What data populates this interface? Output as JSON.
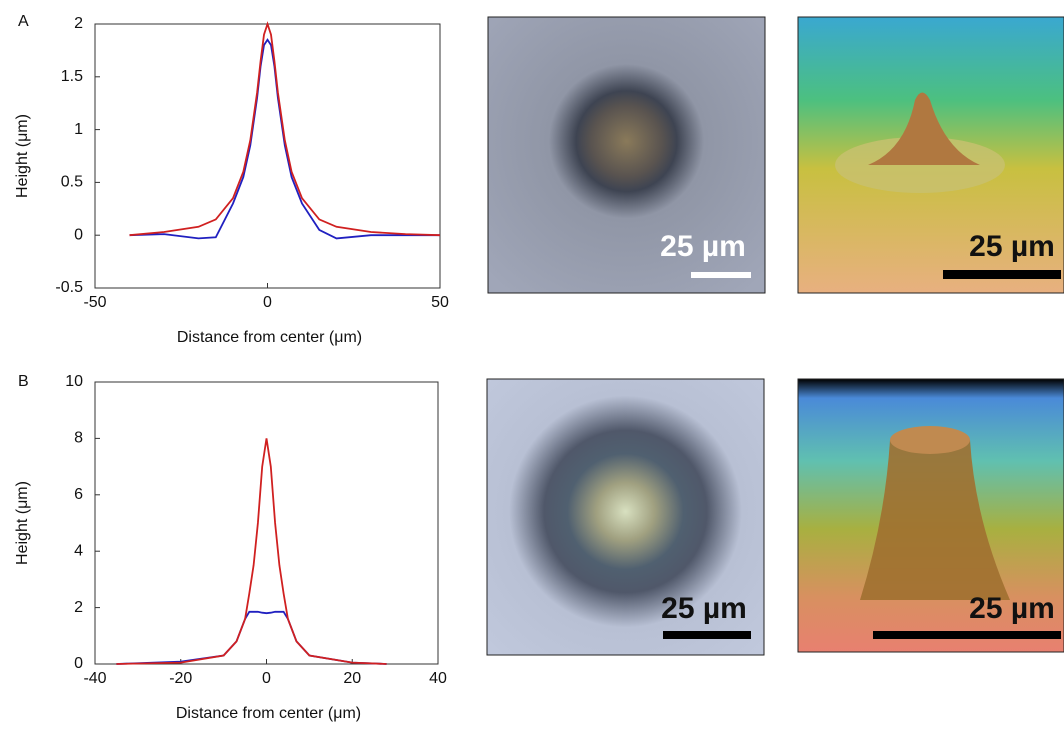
{
  "chart_data": [
    {
      "type": "line",
      "xlabel": "Distance from center (μm)",
      "ylabel": "Height (μm)",
      "x": [
        -40,
        -30,
        -20,
        -15,
        -10,
        -7,
        -5,
        -3,
        -2,
        -1,
        0,
        1,
        2,
        3,
        5,
        7,
        10,
        15,
        20,
        30,
        40,
        50
      ],
      "series": [
        {
          "color": "#2020c0",
          "values": [
            0,
            0.01,
            -0.03,
            -0.02,
            0.3,
            0.55,
            0.85,
            1.3,
            1.6,
            1.8,
            1.85,
            1.8,
            1.6,
            1.3,
            0.85,
            0.55,
            0.3,
            0.05,
            -0.03,
            0,
            0,
            0
          ]
        },
        {
          "color": "#d02020",
          "values": [
            0,
            0.03,
            0.08,
            0.15,
            0.35,
            0.6,
            0.9,
            1.35,
            1.65,
            1.9,
            2,
            1.9,
            1.65,
            1.35,
            0.9,
            0.6,
            0.35,
            0.15,
            0.08,
            0.03,
            0.01,
            0
          ]
        }
      ],
      "xlim": [
        -50,
        50
      ],
      "xticks": [
        -50,
        0,
        50
      ],
      "ylim": [
        -0.5,
        2
      ],
      "yticks": [
        -0.5,
        0,
        0.5,
        1,
        1.5,
        2
      ]
    },
    {
      "type": "line",
      "xlabel": "Distance from center (μm)",
      "ylabel": "Height (μm)",
      "x": [
        -35,
        -20,
        -10,
        -7,
        -5,
        -4,
        -3,
        -2,
        -1,
        0,
        1,
        2,
        3,
        4,
        5,
        7,
        10,
        20,
        28
      ],
      "series": [
        {
          "color": "#2020c0",
          "values": [
            0,
            0.08,
            0.3,
            0.8,
            1.6,
            1.85,
            1.85,
            1.85,
            1.82,
            1.8,
            1.82,
            1.85,
            1.85,
            1.85,
            1.6,
            0.8,
            0.3,
            0.05,
            0
          ]
        },
        {
          "color": "#d02020",
          "values": [
            0,
            0.05,
            0.3,
            0.8,
            1.6,
            2.5,
            3.5,
            5,
            7,
            8,
            7,
            5,
            3.5,
            2.5,
            1.6,
            0.8,
            0.3,
            0.05,
            0
          ]
        }
      ],
      "xlim": [
        -40,
        40
      ],
      "xticks": [
        -40,
        -20,
        0,
        20,
        40
      ],
      "ylim": [
        0,
        10
      ],
      "yticks": [
        0,
        2,
        4,
        6,
        8,
        10
      ]
    }
  ],
  "panels": [
    {
      "label": "A",
      "scale_bars": [
        "25 µm",
        "25 µm"
      ]
    },
    {
      "label": "B",
      "scale_bars": [
        "25 µm",
        "25 µm"
      ]
    }
  ]
}
